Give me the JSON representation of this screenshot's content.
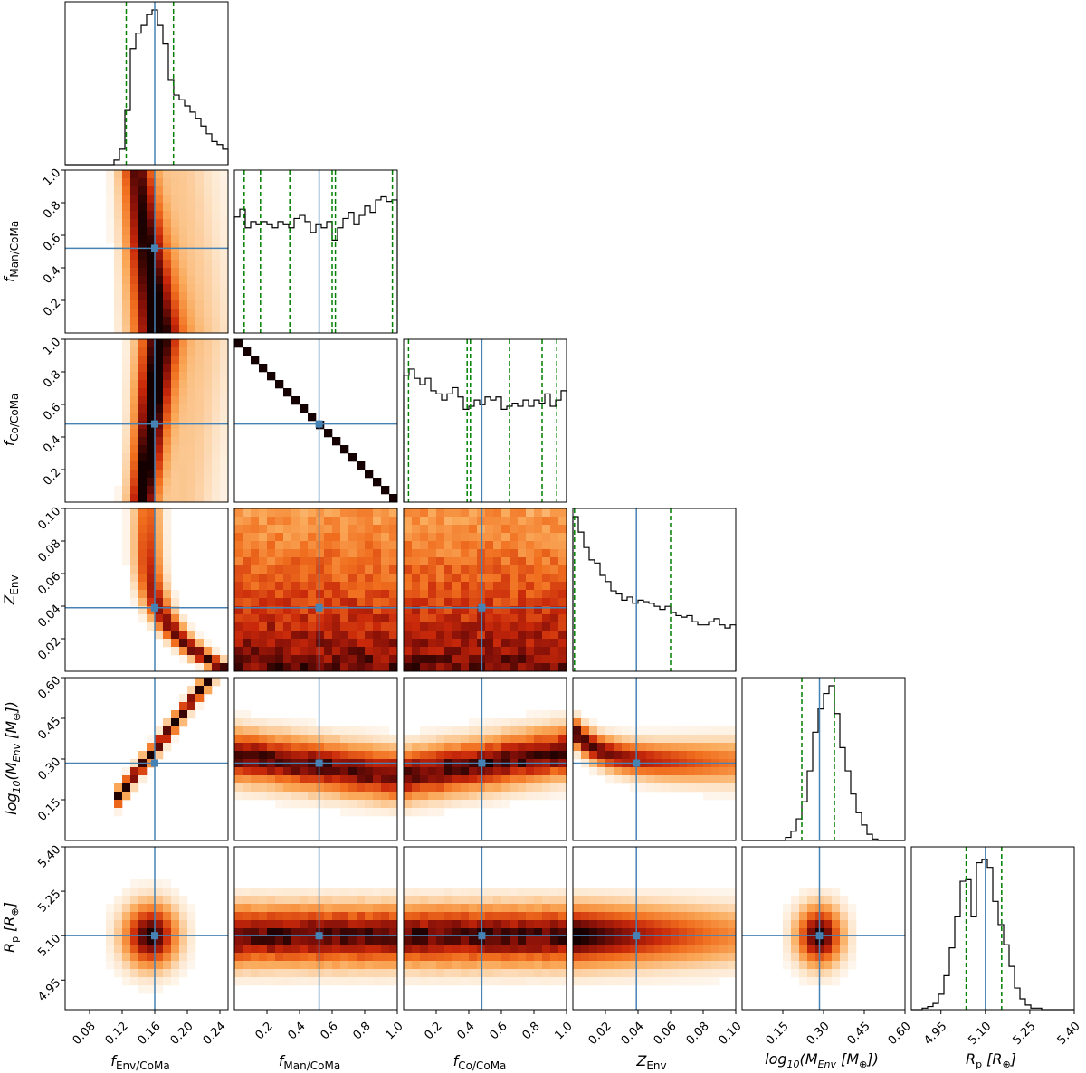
{
  "figure": {
    "params": [
      {
        "key": "fenv",
        "axis_label": "f",
        "axis_sub": "Env/CoMa",
        "axis_label_x": "f",
        "axis_sub_x": "Env/CoMa",
        "range": [
          0.05,
          0.25
        ],
        "ticks": [
          0.08,
          0.12,
          0.16,
          0.2,
          0.24
        ],
        "tick_labels": [
          "0.08",
          "0.12",
          "0.16",
          "0.20",
          "0.24"
        ],
        "best": 0.16,
        "quantiles": [
          0.125,
          0.183
        ]
      },
      {
        "key": "fman",
        "axis_label": "f",
        "axis_sub": "Man/CoMa",
        "range": [
          0.0,
          1.0
        ],
        "ticks": [
          0.2,
          0.4,
          0.6,
          0.8,
          1.0
        ],
        "tick_labels": [
          "0.2",
          "0.4",
          "0.6",
          "0.8",
          "1.0"
        ],
        "best": 0.52,
        "quantiles": [
          0.06,
          0.16,
          0.34,
          0.6,
          0.62,
          0.97
        ]
      },
      {
        "key": "fco",
        "axis_label": "f",
        "axis_sub": "Co/CoMa",
        "range": [
          0.0,
          1.0
        ],
        "ticks": [
          0.2,
          0.4,
          0.6,
          0.8,
          1.0
        ],
        "tick_labels": [
          "0.2",
          "0.4",
          "0.6",
          "0.8",
          "1.0"
        ],
        "best": 0.48,
        "quantiles": [
          0.03,
          0.39,
          0.41,
          0.65,
          0.85,
          0.94
        ]
      },
      {
        "key": "zenv",
        "axis_label": "Z",
        "axis_sub": "Env",
        "range": [
          0.0,
          0.1
        ],
        "ticks": [
          0.02,
          0.04,
          0.06,
          0.08,
          0.1
        ],
        "tick_labels": [
          "0.02",
          "0.04",
          "0.06",
          "0.08",
          "0.10"
        ],
        "best": 0.039,
        "quantiles": [
          0.001,
          0.06
        ]
      },
      {
        "key": "menv",
        "axis_label": "log10(MEnv [M⊕])",
        "range": [
          0.0,
          0.6
        ],
        "ticks": [
          0.15,
          0.3,
          0.45,
          0.6
        ],
        "tick_labels": [
          "0.15",
          "0.30",
          "0.45",
          "0.60"
        ],
        "best": 0.285,
        "quantiles": [
          0.22,
          0.34
        ]
      },
      {
        "key": "rp",
        "axis_label": "Rp [R⊕]",
        "range": [
          4.85,
          5.4
        ],
        "ticks": [
          4.95,
          5.1,
          5.25,
          5.4
        ],
        "tick_labels": [
          "4.95",
          "5.10",
          "5.25",
          "5.40"
        ],
        "best": 5.1,
        "quantiles": [
          5.035,
          5.155
        ]
      }
    ],
    "diag_labels": {
      "fenv_x": "f",
      "fenv_x_sub": "Env/CoMa",
      "fman_y": "f",
      "fman_y_sub": "Man/CoMa",
      "fman_x": "f",
      "fman_x_sub": "Man/CoMa",
      "fco_y": "f",
      "fco_y_sub": "Co/CoMa",
      "fco_x": "f",
      "fco_x_sub": "Co/CoMa",
      "zenv_y": "Z",
      "zenv_y_sub": "Env",
      "zenv_x": "Z",
      "zenv_x_sub": "Env",
      "menv_y": "log",
      "menv_y_sub": "10",
      "menv_y_rest": "(M",
      "menv_y_sub2": "Env",
      "menv_y_tail": " [M",
      "menv_y_sub3": "⊕",
      "menv_y_end": "])",
      "rp_y": "R",
      "rp_y_sub": "p",
      "rp_y_tail": " [R",
      "rp_y_sub2": "⊕",
      "rp_y_end": "]"
    },
    "colors": {
      "best": "#4682b4",
      "quantile": "#008000",
      "hist": "#000000"
    }
  },
  "chart_data": {
    "type": "heatmap",
    "title": "",
    "description_kind": "corner plot of posterior samples",
    "parameters": [
      "fEnv/CoMa",
      "fMan/CoMa",
      "fCo/CoMa",
      "ZEnv",
      "log10(MEnv [M⊕])",
      "Rp [R⊕]"
    ],
    "best_fit": {
      "fEnv/CoMa": 0.16,
      "fMan/CoMa": 0.52,
      "fCo/CoMa": 0.48,
      "ZEnv": 0.039,
      "log10(MEnv [M⊕])": 0.285,
      "Rp [R⊕]": 5.1
    },
    "marginals": [
      {
        "param": "fEnv/CoMa",
        "range": [
          0.05,
          0.25
        ],
        "counts": [
          0,
          0,
          0,
          0,
          0,
          0,
          0,
          0,
          0,
          0.03,
          0.1,
          0.35,
          0.75,
          0.85,
          0.9,
          0.97,
          1.0,
          0.9,
          0.78,
          0.55,
          0.45,
          0.42,
          0.38,
          0.34,
          0.3,
          0.25,
          0.2,
          0.15,
          0.13,
          0.1
        ]
      },
      {
        "param": "fMan/CoMa",
        "range": [
          0.0,
          1.0
        ],
        "counts": [
          0.75,
          0.8,
          0.68,
          0.72,
          0.7,
          0.72,
          0.7,
          0.68,
          0.72,
          0.7,
          0.68,
          0.74,
          0.76,
          0.72,
          0.65,
          0.7,
          0.68,
          0.72,
          0.6,
          0.68,
          0.74,
          0.78,
          0.7,
          0.76,
          0.82,
          0.78,
          0.86,
          0.88,
          0.85,
          0.86
        ]
      },
      {
        "param": "fCo/CoMa",
        "range": [
          0.0,
          1.0
        ],
        "counts": [
          0.82,
          0.86,
          0.8,
          0.76,
          0.8,
          0.72,
          0.7,
          0.66,
          0.7,
          0.74,
          0.68,
          0.6,
          0.62,
          0.66,
          0.63,
          0.68,
          0.66,
          0.68,
          0.6,
          0.62,
          0.64,
          0.62,
          0.66,
          0.62,
          0.66,
          0.64,
          0.7,
          0.62,
          0.66,
          0.72
        ]
      },
      {
        "param": "ZEnv",
        "range": [
          0.0,
          0.1
        ],
        "counts": [
          1.0,
          0.9,
          0.8,
          0.72,
          0.7,
          0.62,
          0.58,
          0.52,
          0.5,
          0.46,
          0.48,
          0.44,
          0.46,
          0.45,
          0.44,
          0.42,
          0.4,
          0.42,
          0.38,
          0.36,
          0.35,
          0.36,
          0.32,
          0.3,
          0.3,
          0.32,
          0.34,
          0.3,
          0.28,
          0.3
        ]
      },
      {
        "param": "log10(MEnv [M⊕])",
        "range": [
          0.0,
          0.6
        ],
        "counts": [
          0,
          0,
          0,
          0,
          0,
          0,
          0,
          0,
          0.02,
          0.06,
          0.14,
          0.25,
          0.45,
          0.7,
          0.85,
          0.95,
          1.0,
          0.82,
          0.6,
          0.45,
          0.3,
          0.18,
          0.1,
          0.04,
          0.01,
          0,
          0,
          0,
          0,
          0
        ]
      },
      {
        "param": "Rp [R⊕]",
        "range": [
          4.85,
          5.4
        ],
        "counts": [
          0,
          0,
          0.01,
          0.02,
          0.04,
          0.1,
          0.22,
          0.4,
          0.6,
          0.83,
          0.84,
          0.6,
          0.95,
          0.97,
          0.92,
          0.7,
          0.55,
          0.42,
          0.28,
          0.14,
          0.07,
          0.03,
          0.01,
          0.01,
          0,
          0,
          0,
          0,
          0,
          0
        ]
      }
    ],
    "axis_labels": [
      "fEnv/CoMa",
      "fMan/CoMa",
      "fCo/CoMa",
      "ZEnv",
      "log10(MEnv [M⊕])",
      "Rp [R⊕]"
    ]
  }
}
